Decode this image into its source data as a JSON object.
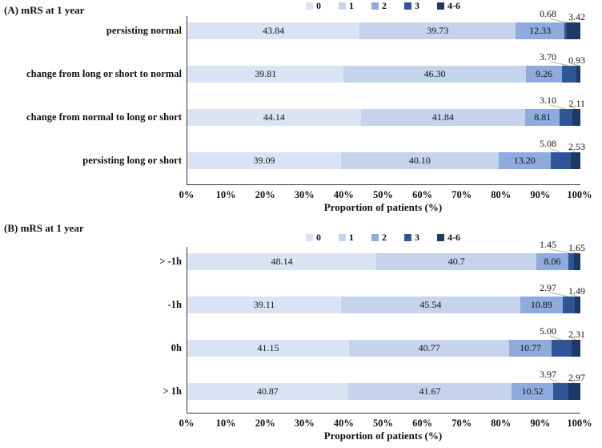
{
  "colors": {
    "segments": [
      "#dae3f3",
      "#c6d3ec",
      "#8faadc",
      "#2f5597",
      "#203864"
    ],
    "axis_line": "#3a3a3a",
    "leader_line": "#b3b3b3",
    "text": "#111111"
  },
  "chart_data": [
    {
      "type": "bar",
      "stacked": true,
      "orientation": "horizontal",
      "title": "(A) mRS at 1 year",
      "legend_entries": [
        "0",
        "1",
        "2",
        "3",
        "4-6"
      ],
      "legend_position": "top",
      "categories": [
        "persisting normal",
        "change from long or short to normal",
        "change from normal to long or short",
        "persisting long or short"
      ],
      "series": [
        {
          "name": "0",
          "values": [
            43.84,
            39.81,
            44.14,
            39.09
          ]
        },
        {
          "name": "1",
          "values": [
            39.73,
            46.3,
            41.84,
            40.1
          ]
        },
        {
          "name": "2",
          "values": [
            12.33,
            9.26,
            8.81,
            13.2
          ]
        },
        {
          "name": "3",
          "values": [
            0.68,
            3.7,
            3.1,
            5.08
          ]
        },
        {
          "name": "4-6",
          "values": [
            3.42,
            0.93,
            2.11,
            2.53
          ]
        }
      ],
      "row_value_labels": [
        [
          "43.84",
          "39.73",
          "12.33",
          "0.68",
          "3.42"
        ],
        [
          "39.81",
          "46.30",
          "9.26",
          "3.70",
          "0.93"
        ],
        [
          "44.14",
          "41.84",
          "8.81",
          "3.10",
          "2.11"
        ],
        [
          "39.09",
          "40.10",
          "13.20",
          "5.08",
          "2.53"
        ]
      ],
      "xlabel": "Proportion of patients (%)",
      "xticks": [
        "0%",
        "10%",
        "20%",
        "30%",
        "40%",
        "50%",
        "60%",
        "70%",
        "80%",
        "90%",
        "100%"
      ],
      "xlim": [
        0,
        100
      ],
      "grid": false
    },
    {
      "type": "bar",
      "stacked": true,
      "orientation": "horizontal",
      "title": "(B) mRS at 1 year",
      "legend_entries": [
        "0",
        "1",
        "2",
        "3",
        "4-6"
      ],
      "legend_position": "top",
      "categories": [
        "> -1h",
        "-1h",
        "0h",
        "> 1h"
      ],
      "series": [
        {
          "name": "0",
          "values": [
            48.14,
            39.11,
            41.15,
            40.87
          ]
        },
        {
          "name": "1",
          "values": [
            40.7,
            45.54,
            40.77,
            41.67
          ]
        },
        {
          "name": "2",
          "values": [
            8.06,
            10.89,
            10.77,
            10.52
          ]
        },
        {
          "name": "3",
          "values": [
            1.45,
            2.97,
            5.0,
            3.97
          ]
        },
        {
          "name": "4-6",
          "values": [
            1.65,
            1.49,
            2.31,
            2.97
          ]
        }
      ],
      "row_value_labels": [
        [
          "48.14",
          "40.7",
          "8.06",
          "1.45",
          "1.65"
        ],
        [
          "39.11",
          "45.54",
          "10.89",
          "2.97",
          "1.49"
        ],
        [
          "41.15",
          "40.77",
          "10.77",
          "5.00",
          "2.31"
        ],
        [
          "40.87",
          "41.67",
          "10.52",
          "3.97",
          "2.97"
        ]
      ],
      "xlabel": "Proportion of patients (%)",
      "xticks": [
        "0%",
        "10%",
        "20%",
        "30%",
        "40%",
        "50%",
        "60%",
        "70%",
        "80%",
        "90%",
        "100%"
      ],
      "xlim": [
        0,
        100
      ],
      "grid": false
    }
  ]
}
